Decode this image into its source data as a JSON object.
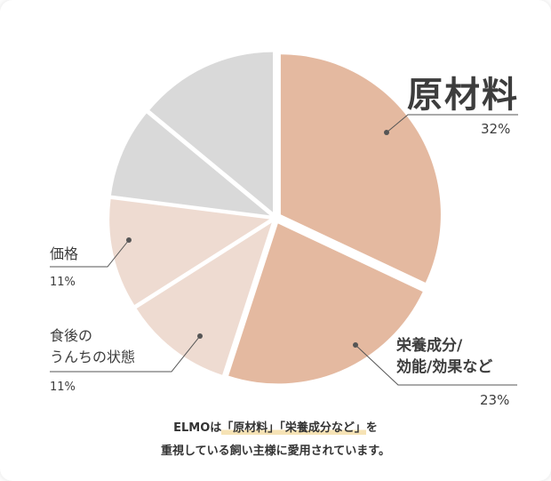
{
  "chart_data": {
    "type": "pie",
    "slices": [
      {
        "label": "原材料",
        "value": 32,
        "percent_label": "32%",
        "color": "#e4b9a0"
      },
      {
        "label": "栄養成分/効能/効果など",
        "value": 23,
        "percent_label": "23%",
        "color": "#e4b9a0"
      },
      {
        "label": "食後のうんちの状態",
        "value": 11,
        "percent_label": "11%",
        "color": "#eedbd1"
      },
      {
        "label": "価格",
        "value": 11,
        "percent_label": "11%",
        "color": "#eedbd1"
      },
      {
        "label": "",
        "value": 9,
        "percent_label": "",
        "color": "#d9d9d9"
      },
      {
        "label": "",
        "value": 14,
        "percent_label": "",
        "color": "#d9d9d9"
      }
    ]
  },
  "labels": {
    "main": "原材料",
    "main_pct": "32%",
    "nut_line1": "栄養成分/",
    "nut_line2": "効能/効果など",
    "nut_pct": "23%",
    "price": "価格",
    "price_pct": "11%",
    "stool_line1": "食後の",
    "stool_line2": "うんちの状態",
    "stool_pct": "11%"
  },
  "caption": {
    "prefix": "ELMOは",
    "hl1": "「原材料」",
    "hl2": "「栄養成分など」",
    "suffix": "を",
    "line2": "重視している飼い主様に愛用されています。"
  },
  "colors": {
    "leader": "#555555",
    "background": "#ffffff"
  }
}
